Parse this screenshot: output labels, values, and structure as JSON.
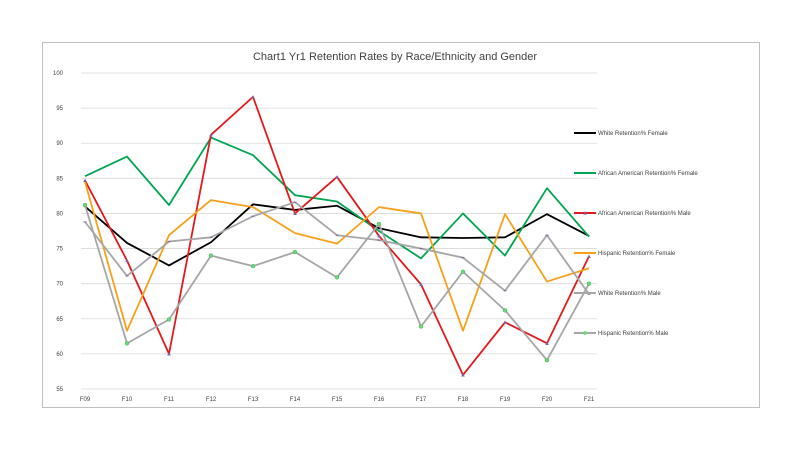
{
  "chart_data": {
    "type": "line",
    "title": "Chart1 Yr1 Retention Rates by Race/Ethnicity and Gender",
    "xlabel": "",
    "ylabel": "",
    "categories": [
      "F09",
      "F10",
      "F11",
      "F12",
      "F13",
      "F14",
      "F15",
      "F16",
      "F17",
      "F18",
      "F19",
      "F20",
      "F21"
    ],
    "ylim": [
      55,
      100
    ],
    "yticks": [
      55,
      60,
      65,
      70,
      75,
      80,
      85,
      90,
      95,
      100
    ],
    "grid": true,
    "legend_position": "right",
    "series": [
      {
        "name": "White Retention% Female",
        "color": "#000000",
        "marker": "none",
        "values": [
          81.0,
          75.8,
          72.6,
          75.9,
          81.3,
          80.5,
          81.1,
          77.9,
          76.6,
          76.5,
          76.6,
          79.9,
          76.8
        ]
      },
      {
        "name": "African American Retention% Female",
        "color": "#00a651",
        "marker": "none",
        "values": [
          85.3,
          88.1,
          81.2,
          90.8,
          88.3,
          82.6,
          81.7,
          77.5,
          73.6,
          80.0,
          74.0,
          83.6,
          76.7
        ]
      },
      {
        "name": "African American Retention% Male",
        "color": "#e31a1c",
        "marker": "triangle",
        "values": [
          84.7,
          73.3,
          60.0,
          91.2,
          96.6,
          80.0,
          85.2,
          76.8,
          69.9,
          57.0,
          64.5,
          61.5,
          73.9
        ]
      },
      {
        "name": "Hispanic Retention% Female",
        "color": "#f7a11a",
        "marker": "none",
        "values": [
          84.5,
          63.3,
          76.9,
          81.9,
          80.9,
          77.2,
          75.7,
          80.9,
          80.0,
          63.3,
          79.9,
          70.3,
          72.2
        ]
      },
      {
        "name": "White Retention% Male",
        "color": "#a6a6a6",
        "marker": "dash",
        "values": [
          78.8,
          71.1,
          76.0,
          76.6,
          79.6,
          81.6,
          76.9,
          76.2,
          75.0,
          73.7,
          69.0,
          76.9,
          68.5
        ]
      },
      {
        "name": "Hispanic Retention% Male",
        "color": "#a6a6a6",
        "marker": "circle-green",
        "values": [
          81.2,
          61.5,
          64.9,
          74.0,
          72.5,
          74.5,
          70.9,
          78.5,
          63.9,
          71.7,
          66.2,
          59.1,
          70.0
        ]
      }
    ],
    "marker_colors": {
      "triangle": "#7f5fa8",
      "circle-green": "#66dd77",
      "dash": "#8064a2"
    }
  }
}
